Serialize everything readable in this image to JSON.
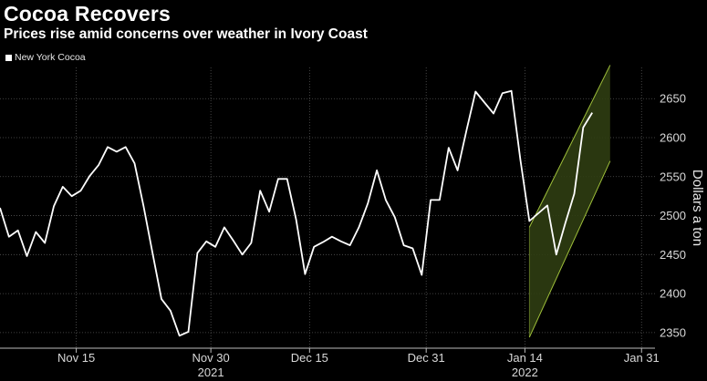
{
  "header": {
    "title": "Cocoa Recovers",
    "subtitle": "Prices rise amid concerns over weather in Ivory Coast"
  },
  "chart_data": {
    "type": "line",
    "title": "Cocoa Recovers",
    "subtitle": "Prices rise amid concerns over weather in Ivory Coast",
    "ylabel": "Dollars a ton",
    "xlabel": "",
    "ylim": [
      2330,
      2690
    ],
    "yticks": [
      2350,
      2400,
      2450,
      2500,
      2550,
      2600,
      2650
    ],
    "x_tick_labels": [
      {
        "label": "Nov 15",
        "x": 8.5
      },
      {
        "label": "Nov 30",
        "x": 23.5
      },
      {
        "label": "Dec 15",
        "x": 34.5
      },
      {
        "label": "Dec 31",
        "x": 47.5
      },
      {
        "label": "Jan 14",
        "x": 58.5
      },
      {
        "label": "Jan 31",
        "x": 71.5
      }
    ],
    "year_labels": [
      {
        "label": "2021",
        "x": 23.5
      },
      {
        "label": "2022",
        "x": 58.5
      }
    ],
    "grid": true,
    "legend_position": "top-left",
    "colors": {
      "line": "#ffffff",
      "channel_fill": "#2f3d12",
      "channel_edge": "#9fc03a",
      "grid": "#555555"
    },
    "series": [
      {
        "name": "New York Cocoa",
        "points": [
          [
            0,
            2510
          ],
          [
            1,
            2473
          ],
          [
            2,
            2481
          ],
          [
            3,
            2448
          ],
          [
            4,
            2479
          ],
          [
            5,
            2465
          ],
          [
            6,
            2512
          ],
          [
            7,
            2537
          ],
          [
            8,
            2525
          ],
          [
            9,
            2532
          ],
          [
            10,
            2551
          ],
          [
            11,
            2565
          ],
          [
            12,
            2588
          ],
          [
            13,
            2582
          ],
          [
            14,
            2588
          ],
          [
            15,
            2567
          ],
          [
            16,
            2512
          ],
          [
            17,
            2452
          ],
          [
            18,
            2393
          ],
          [
            19,
            2378
          ],
          [
            20,
            2346
          ],
          [
            21,
            2351
          ],
          [
            22,
            2452
          ],
          [
            23,
            2467
          ],
          [
            24,
            2460
          ],
          [
            25,
            2485
          ],
          [
            26,
            2468
          ],
          [
            27,
            2450
          ],
          [
            28,
            2465
          ],
          [
            29,
            2532
          ],
          [
            30,
            2505
          ],
          [
            31,
            2547
          ],
          [
            32,
            2547
          ],
          [
            33,
            2495
          ],
          [
            34,
            2425
          ],
          [
            35,
            2460
          ],
          [
            36,
            2466
          ],
          [
            37,
            2473
          ],
          [
            38,
            2467
          ],
          [
            39,
            2462
          ],
          [
            40,
            2485
          ],
          [
            41,
            2516
          ],
          [
            42,
            2558
          ],
          [
            43,
            2520
          ],
          [
            44,
            2498
          ],
          [
            45,
            2462
          ],
          [
            46,
            2458
          ],
          [
            47,
            2424
          ],
          [
            48,
            2520
          ],
          [
            49,
            2520
          ],
          [
            50,
            2587
          ],
          [
            51,
            2558
          ],
          [
            52,
            2610
          ],
          [
            53,
            2659
          ],
          [
            54,
            2645
          ],
          [
            55,
            2631
          ],
          [
            56,
            2657
          ],
          [
            57,
            2660
          ],
          [
            58,
            2571
          ],
          [
            59,
            2493
          ],
          [
            60,
            2503
          ],
          [
            61,
            2513
          ],
          [
            62,
            2450
          ],
          [
            63,
            2490
          ],
          [
            64,
            2528
          ],
          [
            65,
            2613
          ],
          [
            66,
            2632
          ]
        ]
      }
    ],
    "channel": {
      "start_x": 59,
      "end_x": 68,
      "start_low": 2344,
      "start_high": 2485,
      "end_low": 2570,
      "end_high": 2693
    }
  }
}
